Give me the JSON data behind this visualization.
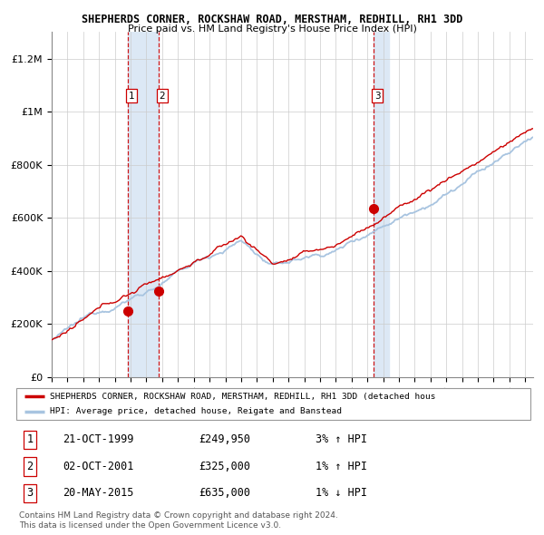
{
  "title": "SHEPHERDS CORNER, ROCKSHAW ROAD, MERSTHAM, REDHILL, RH1 3DD",
  "subtitle": "Price paid vs. HM Land Registry's House Price Index (HPI)",
  "legend_line1": "SHEPHERDS CORNER, ROCKSHAW ROAD, MERSTHAM, REDHILL, RH1 3DD (detached hous",
  "legend_line2": "HPI: Average price, detached house, Reigate and Banstead",
  "sale1_date": "21-OCT-1999",
  "sale1_price": 249950,
  "sale1_hpi": "3% ↑ HPI",
  "sale2_date": "02-OCT-2001",
  "sale2_price": 325000,
  "sale2_hpi": "1% ↑ HPI",
  "sale3_date": "20-MAY-2015",
  "sale3_price": 635000,
  "sale3_hpi": "1% ↓ HPI",
  "footer1": "Contains HM Land Registry data © Crown copyright and database right 2024.",
  "footer2": "This data is licensed under the Open Government Licence v3.0.",
  "hpi_color": "#a8c4e0",
  "price_color": "#cc0000",
  "sale_dot_color": "#cc0000",
  "dashed_line_color": "#cc0000",
  "highlight_color": "#dce8f5",
  "background_color": "#ffffff",
  "grid_color": "#cccccc",
  "ymax": 1300000,
  "start_year": 1995,
  "end_year": 2025,
  "sale_times": [
    1999.8,
    2001.75,
    2015.38
  ],
  "sale_prices": [
    249950,
    325000,
    635000
  ]
}
